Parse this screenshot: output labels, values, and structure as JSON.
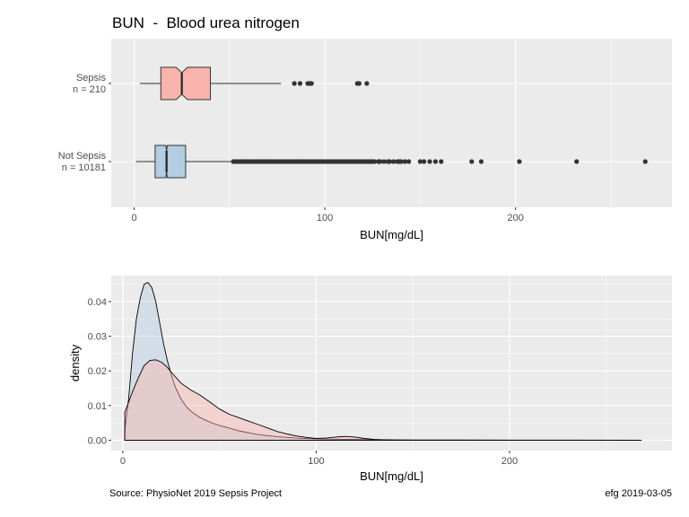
{
  "title": "BUN  -  Blood urea nitrogen",
  "footer": {
    "source": "Source:  PhysioNet 2019 Sepsis Project",
    "credit": "efg 2019-03-05"
  },
  "colors": {
    "sepsis": "#F8B4AC",
    "not_sepsis": "#B3CDE3",
    "panel_bg": "#EBEBEB",
    "grid": "#FFFFFF"
  },
  "chart_data": [
    {
      "type": "boxplot",
      "orientation": "horizontal",
      "xlabel": "BUN[mg/dL]",
      "xlim": [
        -12,
        282
      ],
      "xticks": [
        0,
        100,
        200
      ],
      "groups": [
        {
          "name": "Sepsis",
          "label_line1": "Sepsis",
          "label_line2": "n = 210",
          "color": "#F8B4AC",
          "whisker_low": 3,
          "q1": 14,
          "median": 25,
          "q3": 40,
          "whisker_high": 77,
          "notch_low": 22,
          "notch_high": 28,
          "outliers": [
            84,
            87,
            91,
            92,
            93,
            117,
            118,
            122
          ]
        },
        {
          "name": "Not Sepsis",
          "label_line1": "Not Sepsis",
          "label_line2": "n = 10181",
          "color": "#B3CDE3",
          "whisker_low": 1,
          "q1": 11,
          "median": 17,
          "q3": 27,
          "whisker_high": 51,
          "notch_low": 16.6,
          "notch_high": 17.4,
          "outliers": [
            52,
            53,
            54,
            55,
            56,
            57,
            58,
            59,
            60,
            61,
            62,
            63,
            64,
            65,
            66,
            67,
            68,
            69,
            70,
            71,
            72,
            73,
            74,
            75,
            76,
            77,
            78,
            79,
            80,
            81,
            82,
            83,
            84,
            85,
            86,
            87,
            88,
            89,
            90,
            91,
            92,
            93,
            94,
            95,
            96,
            97,
            98,
            99,
            100,
            101,
            102,
            103,
            104,
            105,
            106,
            107,
            108,
            109,
            110,
            111,
            112,
            113,
            114,
            115,
            116,
            117,
            118,
            119,
            120,
            121,
            122,
            123,
            124,
            125,
            126,
            128,
            129,
            131,
            133,
            134,
            136,
            138,
            139,
            140,
            142,
            144,
            150,
            152,
            155,
            158,
            161,
            177,
            182,
            202,
            232,
            268
          ]
        }
      ]
    },
    {
      "type": "density",
      "xlabel": "BUN[mg/dL]",
      "ylabel": "density",
      "xlim": [
        -6,
        284
      ],
      "ylim": [
        -0.003,
        0.0475
      ],
      "xticks": [
        0,
        100,
        200
      ],
      "yticks": [
        0.0,
        0.01,
        0.02,
        0.03,
        0.04
      ],
      "ytick_labels": [
        "0.00",
        "0.01",
        "0.02",
        "0.03",
        "0.04"
      ],
      "series": [
        {
          "name": "Not Sepsis",
          "color": "#B3CDE3",
          "x": [
            1,
            3,
            5,
            7,
            9,
            11,
            13,
            15,
            17,
            19,
            21,
            23,
            25,
            27,
            30,
            33,
            36,
            40,
            45,
            50,
            55,
            60,
            70,
            80,
            90,
            100,
            110,
            120,
            130,
            150,
            200,
            268
          ],
          "y": [
            0.003,
            0.012,
            0.025,
            0.035,
            0.041,
            0.045,
            0.0455,
            0.044,
            0.04,
            0.034,
            0.028,
            0.023,
            0.019,
            0.0155,
            0.012,
            0.0095,
            0.008,
            0.0065,
            0.0052,
            0.0042,
            0.0035,
            0.0027,
            0.0016,
            0.001,
            0.0006,
            0.0004,
            0.0003,
            0.0002,
            0.0001,
            5e-05,
            2e-05,
            0.0
          ]
        },
        {
          "name": "Sepsis",
          "color": "#F8B4AC",
          "x": [
            1,
            3,
            5,
            8,
            11,
            14,
            17,
            20,
            23,
            26,
            30,
            35,
            40,
            45,
            50,
            55,
            60,
            65,
            70,
            75,
            80,
            85,
            90,
            95,
            100,
            105,
            110,
            115,
            120,
            125,
            130,
            140,
            268
          ],
          "y": [
            0.008,
            0.011,
            0.014,
            0.018,
            0.0215,
            0.023,
            0.0232,
            0.0225,
            0.021,
            0.019,
            0.0165,
            0.0145,
            0.013,
            0.011,
            0.009,
            0.0075,
            0.0065,
            0.0055,
            0.0045,
            0.0035,
            0.0025,
            0.0018,
            0.0012,
            0.0008,
            0.0005,
            0.0006,
            0.0009,
            0.0011,
            0.0009,
            0.0005,
            0.0002,
            0.0,
            0.0
          ]
        }
      ]
    }
  ]
}
